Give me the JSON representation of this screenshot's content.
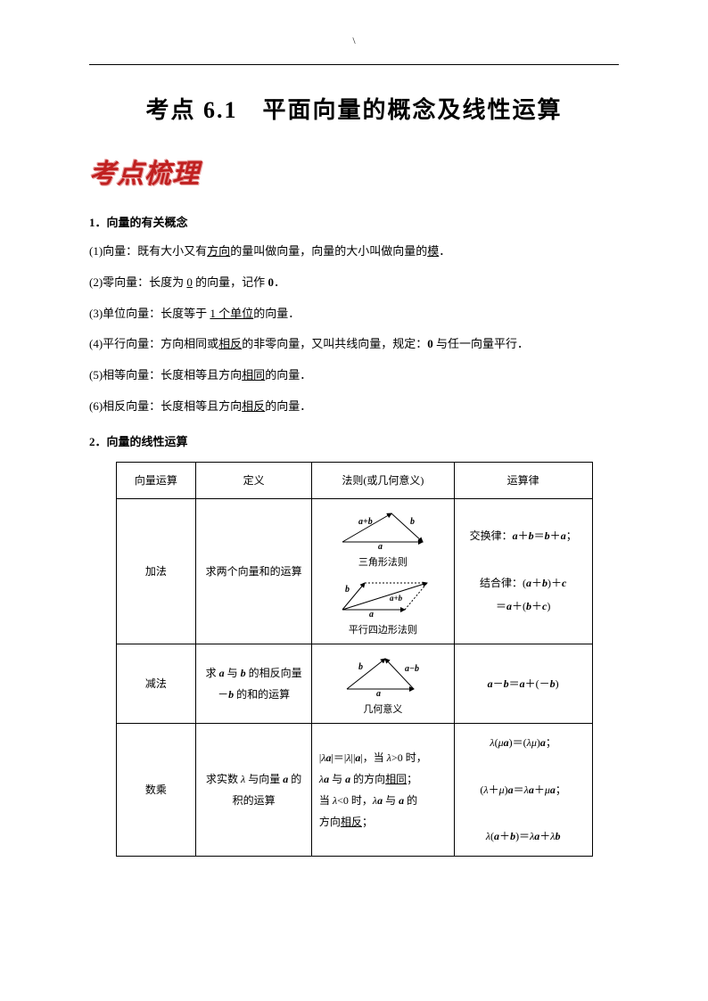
{
  "page": {
    "backslash": "\\",
    "title": "考点 6.1　平面向量的概念及线性运算",
    "banner": "考点梳理"
  },
  "section1": {
    "heading": "1．向量的有关概念",
    "items": [
      {
        "pre": "(1)向量：既有大小又有",
        "u1": "方向",
        "mid": "的量叫做向量，向量的大小叫做向量的",
        "u2": "模",
        "post": "．"
      },
      {
        "pre": "(2)零向量：长度为 ",
        "u1": "0",
        "mid": " 的向量，记作 ",
        "b": "0",
        "post": "．"
      },
      {
        "pre": "(3)单位向量：长度等于 ",
        "u1": "1 个单位",
        "post": "的向量．"
      },
      {
        "pre": "(4)平行向量：方向相同或",
        "u1": "相反",
        "mid": "的非零向量，又叫共线向量，规定：",
        "b": "0",
        "post2": " 与任一向量平行．"
      },
      {
        "pre": "(5)相等向量：长度相等且方向",
        "u1": "相同",
        "post": "的向量．"
      },
      {
        "pre": "(6)相反向量：长度相等且方向",
        "u1": "相反",
        "post": "的向量．"
      }
    ]
  },
  "section2": {
    "heading": "2．向量的线性运算"
  },
  "table": {
    "headers": [
      "向量运算",
      "定义",
      "法则(或几何意义)",
      "运算律"
    ],
    "rows": [
      {
        "op": "加法",
        "def": "求两个向量和的运算",
        "rule_captions": [
          "三角形法则",
          "平行四边形法则"
        ],
        "diagram_labels": {
          "a": "a",
          "b": "b",
          "apb": "a+b"
        },
        "law": "交换律：<span class='bold it'>a</span>＋<span class='bold it'>b</span>＝<span class='bold it'>b</span>＋<span class='bold it'>a</span>；<br><br>结合律：(<span class='bold it'>a</span>＋<span class='bold it'>b</span>)＋<span class='bold it'>c</span><br>＝<span class='bold it'>a</span>＋(<span class='bold it'>b</span>＋<span class='bold it'>c</span>)"
      },
      {
        "op": "减法",
        "def": "求 <span class='bold it'>a</span> 与 <span class='bold it'>b</span> 的相反向量<br>－<span class='bold it'>b</span> 的和的运算",
        "rule_captions": [
          "几何意义"
        ],
        "diagram_labels": {
          "a": "a",
          "b": "b",
          "amb": "a−b"
        },
        "law": "<span class='bold it'>a</span>－<span class='bold it'>b</span>＝<span class='bold it'>a</span>＋(－<span class='bold it'>b</span>)"
      },
      {
        "op": "数乘",
        "def": "求实数 <span class='it'>λ</span> 与向量 <span class='bold it'>a</span> 的<br>积的运算",
        "meaning": "|<span class='it'>λ</span><span class='bold it'>a</span>|＝|<span class='it'>λ</span>||<span class='bold it'>a</span>|，当 <span class='it'>λ</span>&gt;0 时，<br><span class='it'>λ</span><span class='bold it'>a</span> 与 <span class='bold it'>a</span> 的方向<span class='u'>相同</span>；<br>当 <span class='it'>λ</span>&lt;0 时，<span class='it'>λ</span><span class='bold it'>a</span> 与 <span class='bold it'>a</span> 的<br>方向<span class='u'>相反</span>；",
        "law": "<span class='it'>λ</span>(<span class='it'>μ</span><span class='bold it'>a</span>)＝(<span class='it'>λμ</span>)<span class='bold it'>a</span>；<br><br>(<span class='it'>λ</span>＋<span class='it'>μ</span>)<span class='bold it'>a</span>＝<span class='it'>λ</span><span class='bold it'>a</span>＋<span class='it'>μ</span><span class='bold it'>a</span>；<br><br><span class='it'>λ</span>(<span class='bold it'>a</span>＋<span class='bold it'>b</span>)＝<span class='it'>λ</span><span class='bold it'>a</span>＋<span class='it'>λ</span><span class='bold it'>b</span>"
      }
    ]
  },
  "colors": {
    "text": "#000000",
    "banner": "#c02020",
    "banner_shadow": "#e8a0a0",
    "border": "#000000",
    "bg": "#ffffff"
  }
}
